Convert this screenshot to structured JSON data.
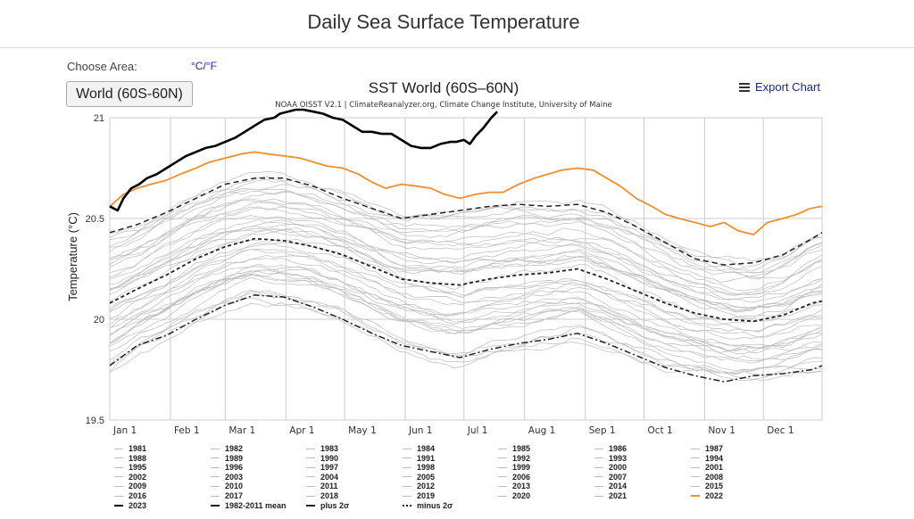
{
  "page": {
    "title": "Daily Sea Surface Temperature"
  },
  "controls": {
    "area_label": "Choose Area:",
    "unit_toggle": "°C/°F",
    "area_button": "World (60S-60N)",
    "export_label": "Export Chart"
  },
  "colors": {
    "year_2023": "#000000",
    "year_2022": "#f28e2b",
    "other_years": "#bdbdbd",
    "mean_and_sigma": "#222222",
    "grid": "#cccccc"
  },
  "chart_data": {
    "type": "line",
    "title": "SST World (60S–60N)",
    "subtitle": "NOAA OISST V2.1 | ClimateReanalyzer.org, Climate Change Institute, University of Maine",
    "xlabel": "",
    "ylabel": "Temperature (°C)",
    "x_unit": "day of year",
    "xlim": [
      1,
      365
    ],
    "ylim": [
      19.5,
      21.0
    ],
    "yticks": [
      19.5,
      20,
      20.5,
      21
    ],
    "x_ticks": [
      {
        "label": "Jan 1",
        "day": 1
      },
      {
        "label": "Feb 1",
        "day": 32
      },
      {
        "label": "Mar 1",
        "day": 60
      },
      {
        "label": "Apr 1",
        "day": 91
      },
      {
        "label": "May 1",
        "day": 121
      },
      {
        "label": "Jun 1",
        "day": 152
      },
      {
        "label": "Jul 1",
        "day": 182
      },
      {
        "label": "Aug 1",
        "day": 213
      },
      {
        "label": "Sep 1",
        "day": 244
      },
      {
        "label": "Oct 1",
        "day": 274
      },
      {
        "label": "Nov 1",
        "day": 305
      },
      {
        "label": "Dec 1",
        "day": 335
      }
    ],
    "grid": true,
    "legend_position": "bottom",
    "series": [
      {
        "name": "2023",
        "style": "thick-black",
        "x": [
          1,
          5,
          8,
          12,
          16,
          20,
          25,
          30,
          35,
          40,
          45,
          50,
          55,
          60,
          65,
          70,
          75,
          80,
          85,
          88,
          92,
          96,
          100,
          105,
          110,
          115,
          120,
          125,
          130,
          135,
          140,
          145,
          150,
          155,
          160,
          165,
          170,
          175,
          178,
          182,
          185,
          188,
          192,
          196,
          199
        ],
        "y": [
          20.56,
          20.54,
          20.6,
          20.65,
          20.67,
          20.7,
          20.72,
          20.75,
          20.78,
          20.81,
          20.83,
          20.85,
          20.86,
          20.88,
          20.9,
          20.93,
          20.96,
          20.99,
          21.0,
          21.02,
          21.03,
          21.04,
          21.04,
          21.03,
          21.02,
          21.0,
          20.99,
          20.96,
          20.93,
          20.93,
          20.92,
          20.92,
          20.89,
          20.86,
          20.85,
          20.85,
          20.87,
          20.88,
          20.88,
          20.89,
          20.87,
          20.91,
          20.95,
          21.0,
          21.03
        ]
      },
      {
        "name": "2022",
        "style": "orange",
        "x": [
          1,
          8,
          15,
          22,
          30,
          37,
          45,
          52,
          60,
          68,
          75,
          82,
          90,
          98,
          105,
          112,
          120,
          128,
          135,
          142,
          150,
          158,
          165,
          172,
          180,
          188,
          195,
          202,
          210,
          218,
          225,
          232,
          240,
          248,
          255,
          262,
          270,
          278,
          285,
          292,
          300,
          308,
          315,
          322,
          330,
          337,
          345,
          352,
          359,
          365
        ],
        "y": [
          20.56,
          20.62,
          20.65,
          20.67,
          20.69,
          20.72,
          20.75,
          20.78,
          20.8,
          20.82,
          20.83,
          20.82,
          20.81,
          20.8,
          20.78,
          20.76,
          20.75,
          20.72,
          20.68,
          20.65,
          20.67,
          20.66,
          20.65,
          20.62,
          20.6,
          20.62,
          20.63,
          20.63,
          20.67,
          20.7,
          20.72,
          20.74,
          20.75,
          20.74,
          20.7,
          20.66,
          20.6,
          20.56,
          20.52,
          20.5,
          20.48,
          20.46,
          20.48,
          20.44,
          20.42,
          20.48,
          20.5,
          20.52,
          20.55,
          20.56
        ]
      },
      {
        "name": "1982-2011 mean",
        "style": "dashed-thick",
        "x": [
          1,
          15,
          30,
          45,
          60,
          75,
          90,
          105,
          120,
          135,
          150,
          165,
          180,
          195,
          210,
          225,
          240,
          255,
          270,
          285,
          300,
          315,
          330,
          345,
          360,
          365
        ],
        "y": [
          20.08,
          20.15,
          20.22,
          20.3,
          20.36,
          20.4,
          20.39,
          20.36,
          20.32,
          20.26,
          20.2,
          20.18,
          20.17,
          20.2,
          20.22,
          20.23,
          20.25,
          20.2,
          20.14,
          20.08,
          20.03,
          20.0,
          19.99,
          20.02,
          20.08,
          20.09
        ]
      },
      {
        "name": "plus 2σ",
        "style": "dashed",
        "x": [
          1,
          15,
          30,
          45,
          60,
          75,
          90,
          105,
          120,
          135,
          150,
          165,
          180,
          195,
          210,
          225,
          240,
          255,
          270,
          285,
          300,
          315,
          330,
          345,
          360,
          365
        ],
        "y": [
          20.43,
          20.47,
          20.53,
          20.6,
          20.67,
          20.7,
          20.7,
          20.66,
          20.6,
          20.55,
          20.5,
          20.52,
          20.54,
          20.56,
          20.57,
          20.56,
          20.57,
          20.53,
          20.46,
          20.38,
          20.3,
          20.27,
          20.28,
          20.32,
          20.4,
          20.43
        ]
      },
      {
        "name": "minus 2σ",
        "style": "dot-dashed",
        "x": [
          1,
          15,
          30,
          45,
          60,
          75,
          90,
          105,
          120,
          135,
          150,
          165,
          180,
          195,
          210,
          225,
          240,
          255,
          270,
          285,
          300,
          315,
          330,
          345,
          360,
          365
        ],
        "y": [
          19.77,
          19.87,
          19.92,
          20.0,
          20.07,
          20.12,
          20.11,
          20.06,
          20.0,
          19.93,
          19.87,
          19.84,
          19.81,
          19.85,
          19.88,
          19.9,
          19.93,
          19.88,
          19.82,
          19.76,
          19.72,
          19.69,
          19.72,
          19.73,
          19.75,
          19.77
        ]
      }
    ],
    "legend": [
      "1981",
      "1982",
      "1983",
      "1984",
      "1985",
      "1986",
      "1987",
      "1988",
      "1989",
      "1990",
      "1991",
      "1992",
      "1993",
      "1994",
      "1995",
      "1996",
      "1997",
      "1998",
      "1999",
      "2000",
      "2001",
      "2002",
      "2003",
      "2004",
      "2005",
      "2006",
      "2007",
      "2008",
      "2009",
      "2010",
      "2011",
      "2012",
      "2013",
      "2014",
      "2015",
      "2016",
      "2017",
      "2018",
      "2019",
      "2020",
      "2021",
      "2022",
      "2023",
      "1982-2011 mean",
      "plus 2σ",
      "minus 2σ"
    ]
  }
}
